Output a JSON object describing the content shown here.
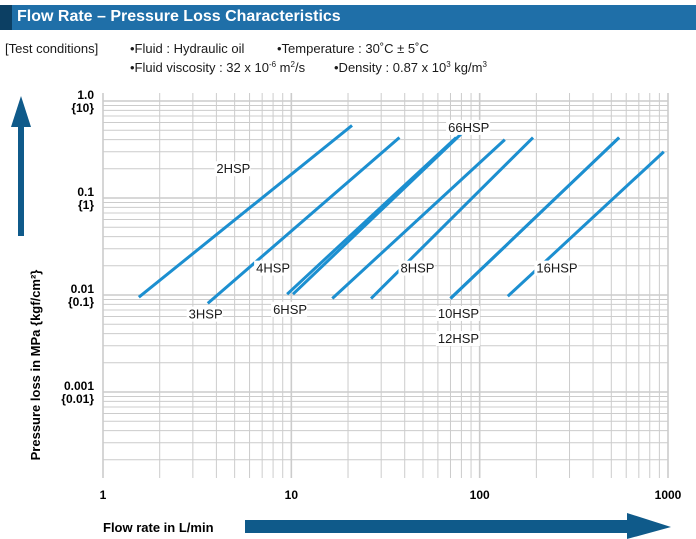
{
  "header": {
    "title": "Flow Rate – Pressure Loss Characteristics"
  },
  "conditions": {
    "label": "[Test conditions]",
    "fluid": "•Fluid : Hydraulic oil",
    "temperature": "•Temperature : 30˚C ± 5˚C",
    "viscosity_prefix": "•Fluid viscosity : 32 x 10",
    "viscosity_exp": "-6",
    "viscosity_unit": " m",
    "viscosity_unit_exp": "2",
    "viscosity_suffix": "/s",
    "density_prefix": "•Density : 0.87 x 10",
    "density_exp": "3",
    "density_suffix": " kg/m",
    "density_suffix_exp": "3"
  },
  "colors": {
    "title_bar": "#1f6fa8",
    "title_accent": "#0c3f63",
    "series": "#1c8fd0",
    "grid": "#cccccc",
    "arrow": "#0f5a8a"
  },
  "chart_data": {
    "type": "line",
    "x_scale": "log",
    "y_scale": "log",
    "xlim": [
      1,
      1000
    ],
    "ylim": [
      0.0006,
      1.0
    ],
    "grid": true,
    "xlabel": "Flow rate in L/min",
    "ylabel": "Pressure loss in MPa {kgf/cm²}",
    "x_ticks": [
      {
        "value": 1,
        "label": "1"
      },
      {
        "value": 10,
        "label": "10"
      },
      {
        "value": 100,
        "label": "100"
      },
      {
        "value": 1000,
        "label": "1000"
      }
    ],
    "y_ticks": [
      {
        "value": 1.0,
        "label": "1.0",
        "sublabel": "{10}"
      },
      {
        "value": 0.1,
        "label": "0.1",
        "sublabel": "{1}"
      },
      {
        "value": 0.01,
        "label": "0.01",
        "sublabel": "{0.1}"
      },
      {
        "value": 0.001,
        "label": "0.001",
        "sublabel": "{0.01}"
      }
    ],
    "series": [
      {
        "name": "2HSP",
        "x": [
          1.55,
          21
        ],
        "y": [
          0.0095,
          0.56
        ]
      },
      {
        "name": "3HSP",
        "x": [
          3.6,
          37.5
        ],
        "y": [
          0.0082,
          0.42
        ]
      },
      {
        "name": "4HSP",
        "x": [
          9.5,
          75
        ],
        "y": [
          0.0102,
          0.42
        ]
      },
      {
        "name": "6HSP",
        "x": [
          10.2,
          80
        ],
        "y": [
          0.0102,
          0.46
        ]
      },
      {
        "name": "8HSP",
        "x": [
          16.5,
          136
        ],
        "y": [
          0.0092,
          0.4
        ]
      },
      {
        "name": "66HSP",
        "x": [
          26.5,
          192
        ],
        "y": [
          0.0092,
          0.42
        ]
      },
      {
        "name": "10HSP",
        "x": [
          70,
          550
        ],
        "y": [
          0.0092,
          0.42
        ]
      },
      {
        "name": "12HSP",
        "x": [
          70,
          550
        ],
        "y": [
          0.0092,
          0.42
        ]
      },
      {
        "name": "16HSP",
        "x": [
          141,
          950
        ],
        "y": [
          0.0097,
          0.3
        ]
      }
    ],
    "labels": [
      {
        "text": "2HSP",
        "x": 4.0,
        "y": 0.18
      },
      {
        "text": "3HSP",
        "x": 2.85,
        "y": 0.0057
      },
      {
        "text": "4HSP",
        "x": 6.5,
        "y": 0.017
      },
      {
        "text": "6HSP",
        "x": 8.0,
        "y": 0.0064
      },
      {
        "text": "66HSP",
        "x": 68,
        "y": 0.48
      },
      {
        "text": "8HSP",
        "x": 38,
        "y": 0.017
      },
      {
        "text": "10HSP",
        "x": 60,
        "y": 0.0058
      },
      {
        "text": "12HSP",
        "x": 60,
        "y": 0.0032
      },
      {
        "text": "16HSP",
        "x": 200,
        "y": 0.017
      }
    ]
  }
}
